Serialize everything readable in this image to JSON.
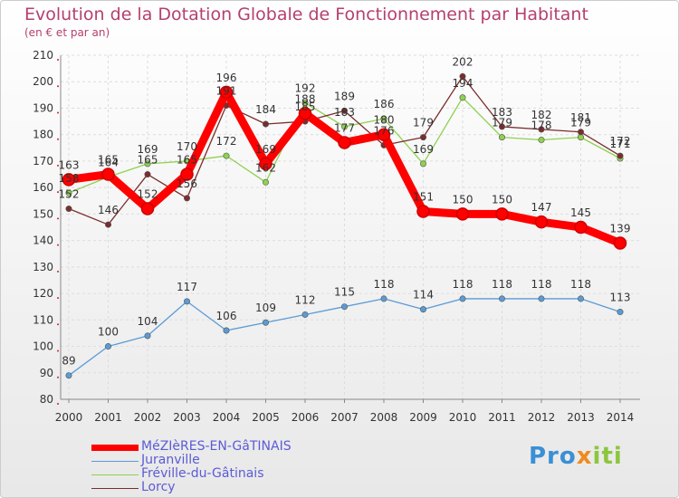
{
  "chart_data": {
    "type": "line",
    "title": "Evolution de la Dotation Globale de Fonctionnement par Habitant",
    "subtitle": "(en € et par an)",
    "x": [
      "2000",
      "2001",
      "2002",
      "2003",
      "2004",
      "2005",
      "2006",
      "2007",
      "2008",
      "2009",
      "2010",
      "2011",
      "2012",
      "2013",
      "2014"
    ],
    "ylim": [
      80,
      210
    ],
    "yticks": [
      80,
      90,
      100,
      110,
      120,
      130,
      140,
      150,
      160,
      170,
      180,
      190,
      200,
      210
    ],
    "grid": true,
    "legend_position": "bottom-left",
    "series": [
      {
        "name": "MéZIèRES-EN-GâTINAIS",
        "color": "#ff0000",
        "values": [
          163,
          165,
          152,
          165,
          196,
          169,
          188,
          177,
          180,
          151,
          150,
          150,
          147,
          145,
          139
        ]
      },
      {
        "name": "Juranville",
        "color": "#5b9bd5",
        "values": [
          89,
          100,
          104,
          117,
          106,
          109,
          112,
          115,
          118,
          114,
          118,
          118,
          118,
          118,
          113
        ]
      },
      {
        "name": "Fréville-du-Gâtinais",
        "color": "#8fd14f",
        "values": [
          158,
          164,
          169,
          170,
          172,
          162,
          192,
          183,
          186,
          169,
          194,
          179,
          178,
          179,
          171
        ]
      },
      {
        "name": "Lorcy",
        "color": "#7b2d2d",
        "values": [
          152,
          146,
          165,
          156,
          191,
          184,
          185,
          189,
          176,
          179,
          202,
          183,
          182,
          181,
          172
        ]
      }
    ]
  },
  "logo": {
    "parts": [
      "Pro",
      "x",
      "iti"
    ]
  }
}
